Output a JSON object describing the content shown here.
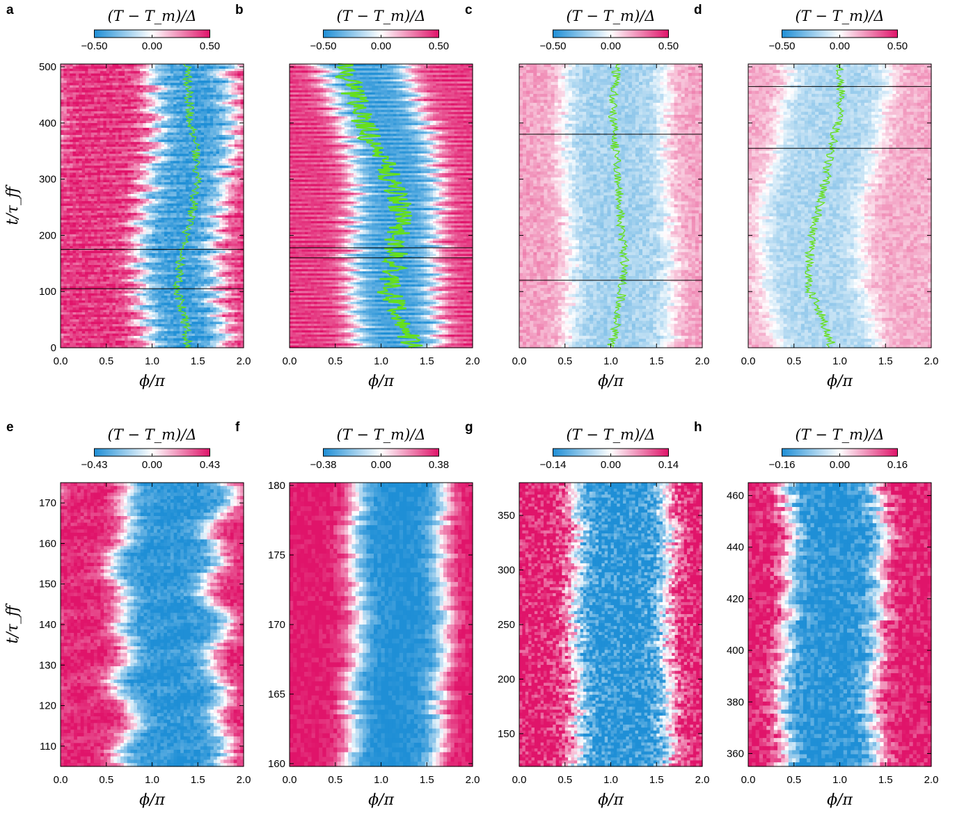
{
  "chart_data": [
    {
      "id": "a",
      "panel_label": "a",
      "type": "heatmap",
      "colorbar_title": "(T − T_m)/Δ",
      "colorbar_ticks": [
        "−0.50",
        "0.00",
        "0.50"
      ],
      "clim": [
        -0.5,
        0.5
      ],
      "xlabel": "ϕ/π",
      "ylabel": "t/τ_ff",
      "xlim": [
        0,
        2
      ],
      "ylim": [
        0,
        505
      ],
      "xticks": [
        0,
        0.5,
        1,
        1.5,
        2
      ],
      "xtick_labels": [
        "0.0",
        "0.5",
        "1.0",
        "1.5",
        "2.0"
      ],
      "yticks": [
        0,
        100,
        200,
        300,
        400,
        500
      ],
      "ytick_labels": [
        "0",
        "100",
        "200",
        "300",
        "400",
        "500"
      ],
      "hlines": [
        105,
        175
      ],
      "green_trace": {
        "t": [
          0,
          50,
          100,
          150,
          200,
          250,
          300,
          350,
          400,
          450,
          500
        ],
        "phi": [
          1.4,
          1.36,
          1.28,
          1.3,
          1.36,
          1.45,
          1.49,
          1.48,
          1.42,
          1.4,
          1.38
        ]
      },
      "pattern": {
        "style": "fast",
        "center": [
          1.38,
          1.3,
          1.28,
          1.4,
          1.48,
          1.42
        ],
        "half_width": 0.42,
        "amplitude": 0.5
      }
    },
    {
      "id": "b",
      "panel_label": "b",
      "type": "heatmap",
      "colorbar_title": "(T − T_m)/Δ",
      "colorbar_ticks": [
        "−0.50",
        "0.00",
        "0.50"
      ],
      "clim": [
        -0.5,
        0.5
      ],
      "xlabel": "ϕ/π",
      "ylabel": "",
      "xlim": [
        0,
        2
      ],
      "ylim": [
        0,
        505
      ],
      "xticks": [
        0,
        0.5,
        1,
        1.5,
        2
      ],
      "xtick_labels": [
        "0.0",
        "0.5",
        "1.0",
        "1.5",
        "2.0"
      ],
      "yticks": [],
      "ytick_labels": [],
      "hlines": [
        160,
        178
      ],
      "green_trace": {
        "t": [
          0,
          50,
          100,
          150,
          200,
          250,
          300,
          350,
          400,
          450,
          500
        ],
        "phi": [
          1.35,
          1.25,
          1.08,
          1.15,
          1.18,
          1.22,
          1.12,
          0.95,
          0.82,
          0.7,
          0.58
        ]
      },
      "pattern": {
        "style": "bands",
        "center": [
          1.2,
          1.12,
          1.15,
          1.18,
          1.02,
          0.8
        ],
        "half_width": 0.45,
        "amplitude": 0.5
      }
    },
    {
      "id": "c",
      "panel_label": "c",
      "type": "heatmap",
      "colorbar_title": "(T − T_m)/Δ",
      "colorbar_ticks": [
        "−0.50",
        "0.00",
        "0.50"
      ],
      "clim": [
        -0.5,
        0.5
      ],
      "xlabel": "ϕ/π",
      "ylabel": "",
      "xlim": [
        0,
        2
      ],
      "ylim": [
        0,
        505
      ],
      "xticks": [
        0,
        0.5,
        1,
        1.5,
        2
      ],
      "xtick_labels": [
        "0.0",
        "0.5",
        "1.0",
        "1.5",
        "2.0"
      ],
      "yticks": [],
      "ytick_labels": [],
      "hlines": [
        120,
        380
      ],
      "green_trace": {
        "t": [
          0,
          50,
          100,
          150,
          200,
          250,
          300,
          350,
          400,
          450,
          500
        ],
        "phi": [
          1.0,
          1.08,
          1.12,
          1.15,
          1.12,
          1.1,
          1.08,
          1.05,
          1.02,
          1.03,
          1.06
        ]
      },
      "pattern": {
        "style": "patchy",
        "center": [
          1.1,
          1.12,
          1.1,
          1.05,
          1.03,
          1.06
        ],
        "half_width": 0.55,
        "amplitude": 0.2
      }
    },
    {
      "id": "d",
      "panel_label": "d",
      "type": "heatmap",
      "colorbar_title": "(T − T_m)/Δ",
      "colorbar_ticks": [
        "−0.50",
        "0.00",
        "0.50"
      ],
      "clim": [
        -0.5,
        0.5
      ],
      "xlabel": "ϕ/π",
      "ylabel": "",
      "xlim": [
        0,
        2
      ],
      "ylim": [
        0,
        505
      ],
      "xticks": [
        0,
        0.5,
        1,
        1.5,
        2
      ],
      "xtick_labels": [
        "0.0",
        "0.5",
        "1.0",
        "1.5",
        "2.0"
      ],
      "yticks": [],
      "ytick_labels": [],
      "hlines": [
        355,
        465
      ],
      "green_trace": {
        "t": [
          0,
          50,
          100,
          150,
          200,
          250,
          300,
          350,
          400,
          450,
          500
        ],
        "phi": [
          0.92,
          0.82,
          0.68,
          0.66,
          0.7,
          0.78,
          0.85,
          0.9,
          0.98,
          1.02,
          1.0
        ]
      },
      "pattern": {
        "style": "patchy",
        "center": [
          0.88,
          0.72,
          0.68,
          0.78,
          0.9,
          1.0
        ],
        "half_width": 0.55,
        "amplitude": 0.18
      }
    },
    {
      "id": "e",
      "panel_label": "e",
      "type": "heatmap",
      "colorbar_title": "(T − T_m)/Δ",
      "colorbar_ticks": [
        "−0.43",
        "0.00",
        "0.43"
      ],
      "clim": [
        -0.43,
        0.43
      ],
      "xlabel": "ϕ/π",
      "ylabel": "t/τ_ff",
      "xlim": [
        0,
        2
      ],
      "ylim": [
        105,
        175
      ],
      "xticks": [
        0,
        0.5,
        1,
        1.5,
        2
      ],
      "xtick_labels": [
        "0.0",
        "0.5",
        "1.0",
        "1.5",
        "2.0"
      ],
      "yticks": [
        110,
        120,
        130,
        140,
        150,
        160,
        170
      ],
      "ytick_labels": [
        "110",
        "120",
        "130",
        "140",
        "150",
        "160",
        "170"
      ],
      "hlines": [],
      "pattern": {
        "style": "wavy",
        "center": [
          1.2,
          1.3,
          1.15,
          1.25,
          1.1,
          1.2,
          1.3
        ],
        "half_width": 0.52,
        "amplitude": 0.43
      }
    },
    {
      "id": "f",
      "panel_label": "f",
      "type": "heatmap",
      "colorbar_title": "(T − T_m)/Δ",
      "colorbar_ticks": [
        "−0.38",
        "0.00",
        "0.38"
      ],
      "clim": [
        -0.38,
        0.38
      ],
      "xlabel": "ϕ/π",
      "ylabel": "",
      "xlim": [
        0,
        2
      ],
      "ylim": [
        159.8,
        180.2
      ],
      "xticks": [
        0,
        0.5,
        1,
        1.5,
        2
      ],
      "xtick_labels": [
        "0.0",
        "0.5",
        "1.0",
        "1.5",
        "2.0"
      ],
      "yticks": [
        160,
        165,
        170,
        175,
        180
      ],
      "ytick_labels": [
        "160",
        "165",
        "170",
        "175",
        "180"
      ],
      "hlines": [],
      "pattern": {
        "style": "smooth",
        "center": [
          1.12,
          1.15,
          1.2,
          1.22,
          1.18,
          1.22
        ],
        "half_width": 0.48,
        "amplitude": 0.38
      }
    },
    {
      "id": "g",
      "panel_label": "g",
      "type": "heatmap",
      "colorbar_title": "(T − T_m)/Δ",
      "colorbar_ticks": [
        "−0.14",
        "0.00",
        "0.14"
      ],
      "clim": [
        -0.14,
        0.14
      ],
      "xlabel": "ϕ/π",
      "ylabel": "",
      "xlim": [
        0,
        2
      ],
      "ylim": [
        120,
        380
      ],
      "xticks": [
        0,
        0.5,
        1,
        1.5,
        2
      ],
      "xtick_labels": [
        "0.0",
        "0.5",
        "1.0",
        "1.5",
        "2.0"
      ],
      "yticks": [
        150,
        200,
        250,
        300,
        350
      ],
      "ytick_labels": [
        "150",
        "200",
        "250",
        "300",
        "350"
      ],
      "hlines": [],
      "pattern": {
        "style": "turbulent",
        "center": [
          1.12,
          1.15,
          1.1,
          1.12,
          1.15,
          1.1
        ],
        "half_width": 0.5,
        "amplitude": 0.14
      }
    },
    {
      "id": "h",
      "panel_label": "h",
      "type": "heatmap",
      "colorbar_title": "(T − T_m)/Δ",
      "colorbar_ticks": [
        "−0.16",
        "0.00",
        "0.16"
      ],
      "clim": [
        -0.16,
        0.16
      ],
      "xlabel": "ϕ/π",
      "ylabel": "",
      "xlim": [
        0,
        2
      ],
      "ylim": [
        355,
        465
      ],
      "xticks": [
        0,
        0.5,
        1,
        1.5,
        2
      ],
      "xtick_labels": [
        "0.0",
        "0.5",
        "1.0",
        "1.5",
        "2.0"
      ],
      "yticks": [
        360,
        380,
        400,
        420,
        440,
        460
      ],
      "ytick_labels": [
        "360",
        "380",
        "400",
        "420",
        "440",
        "460"
      ],
      "hlines": [],
      "pattern": {
        "style": "blotchy",
        "center": [
          0.92,
          0.85,
          0.9,
          0.95,
          0.98,
          0.9
        ],
        "half_width": 0.5,
        "amplitude": 0.16
      }
    }
  ],
  "colors": {
    "negative": "#1f8fd6",
    "zero": "#ffffff",
    "positive": "#e0146a",
    "trace": "#66e01a",
    "frame": "#000000"
  }
}
